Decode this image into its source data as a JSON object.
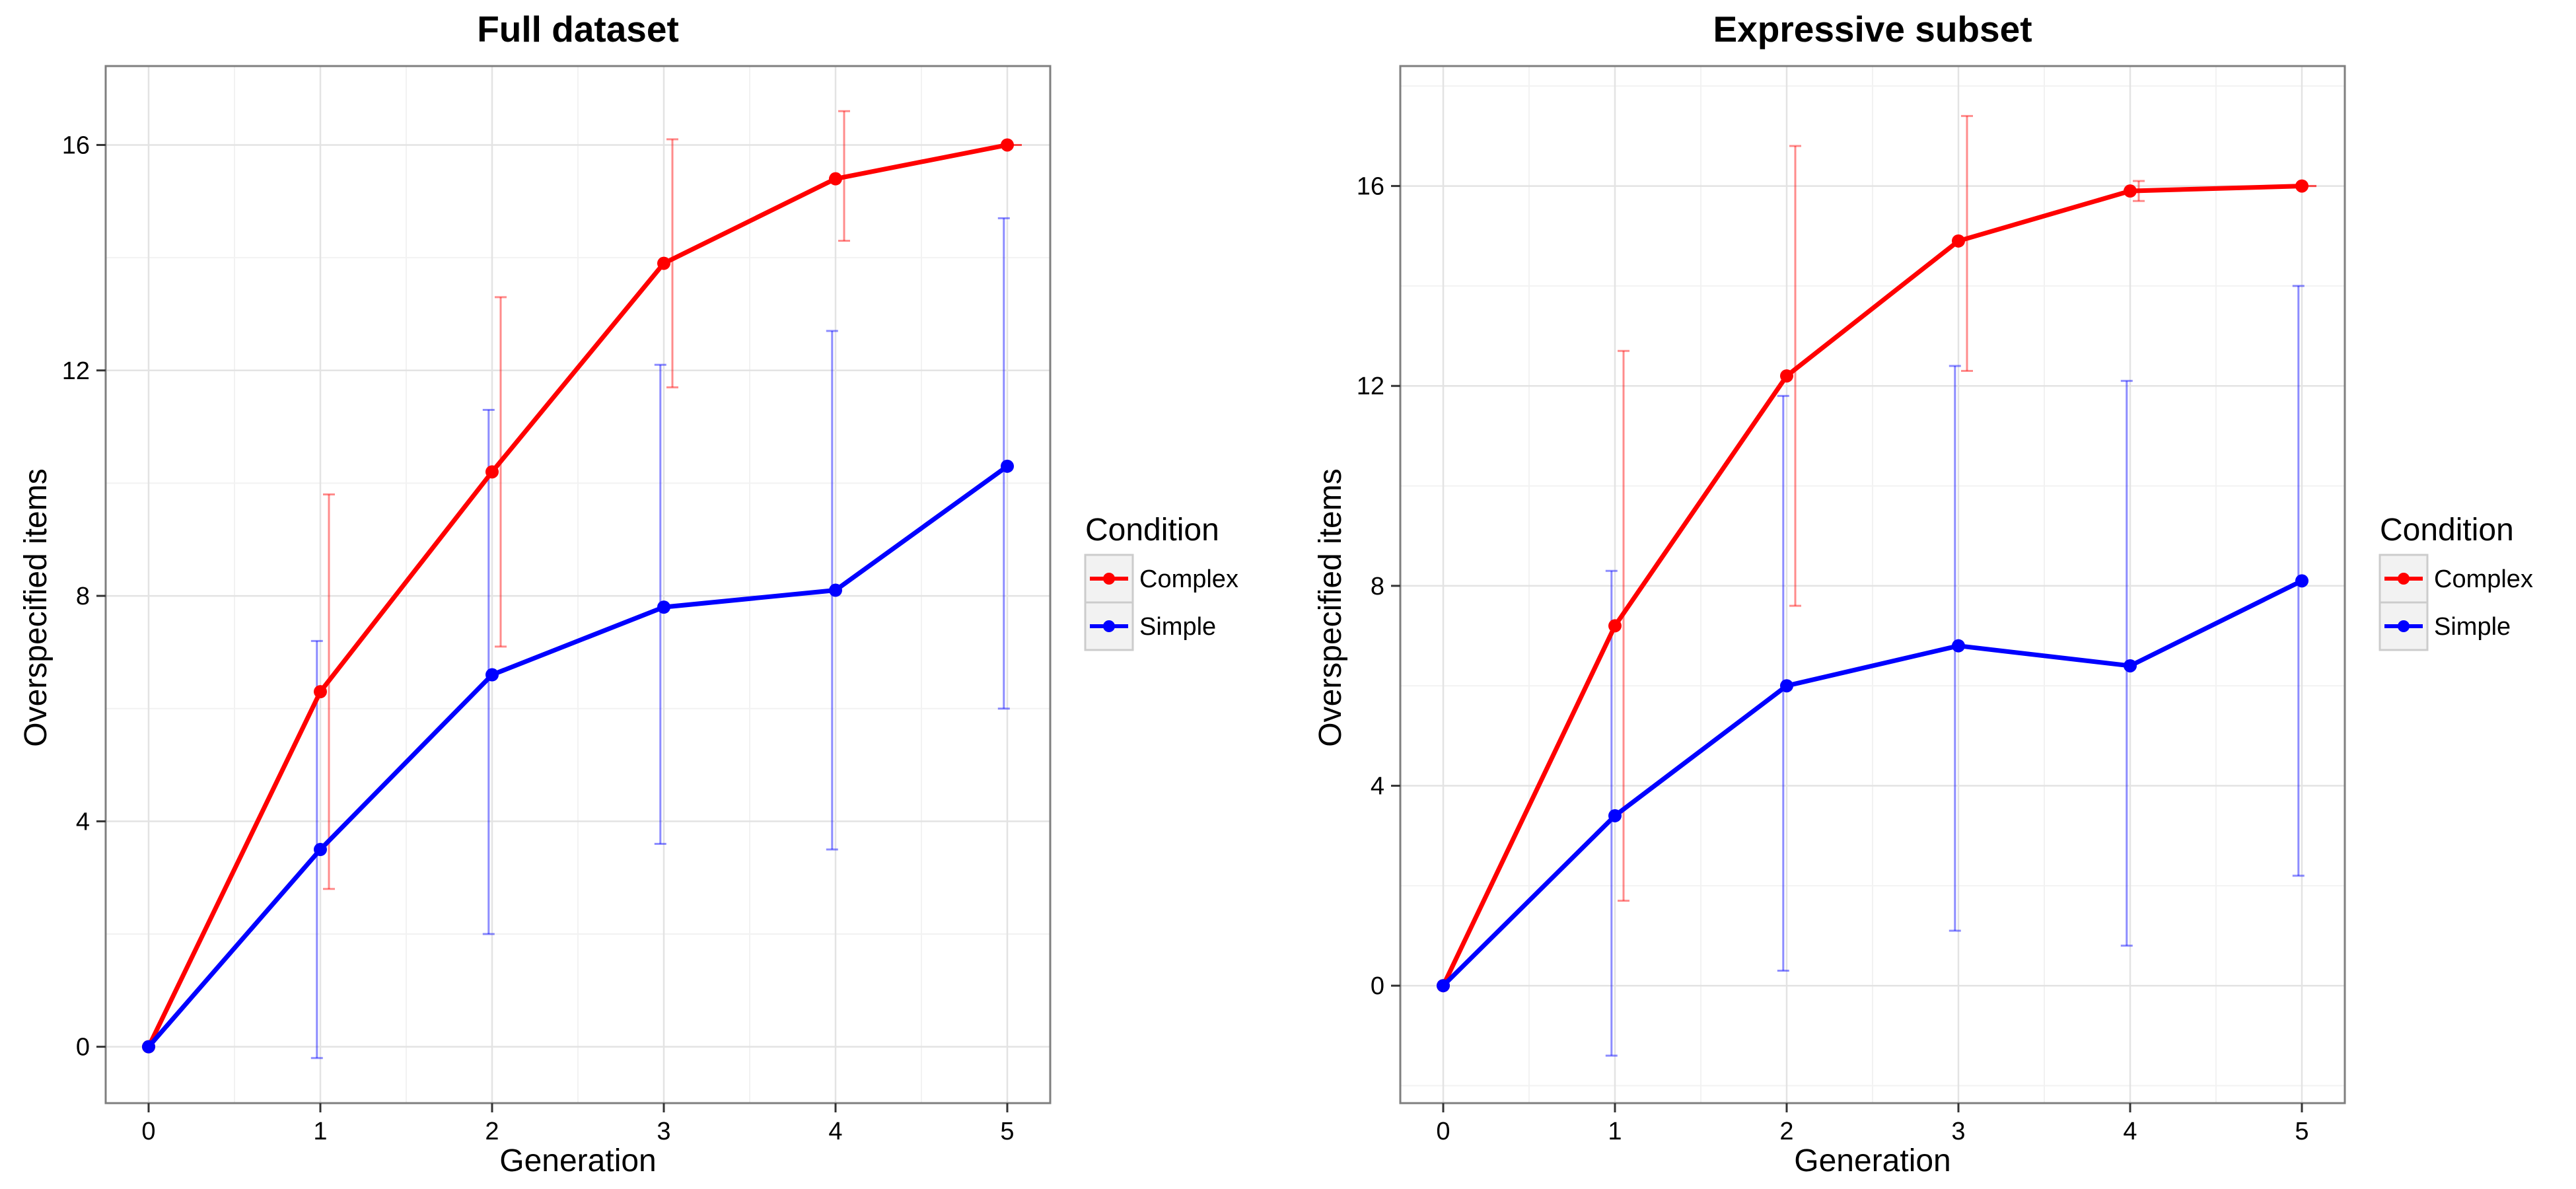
{
  "chart_data": [
    {
      "type": "line",
      "title": "Full dataset",
      "xlabel": "Generation",
      "ylabel": "Overspecified items",
      "x": [
        0,
        1,
        2,
        3,
        4,
        5
      ],
      "xlim": [
        -0.25,
        5.25
      ],
      "ylim": [
        -1,
        17.4
      ],
      "yticks": [
        0,
        4,
        8,
        12,
        16
      ],
      "grid": true,
      "legend": {
        "title": "Condition",
        "position": "right"
      },
      "series": [
        {
          "name": "Complex",
          "color": "#ff0000",
          "values": [
            0,
            6.3,
            10.2,
            13.9,
            15.4,
            16
          ],
          "error_low": [
            0,
            2.8,
            7.1,
            11.7,
            14.3,
            16
          ],
          "error_high": [
            0,
            9.8,
            13.3,
            16.1,
            16.6,
            16
          ]
        },
        {
          "name": "Simple",
          "color": "#0000ff",
          "values": [
            0,
            3.5,
            6.6,
            7.8,
            8.1,
            10.3
          ],
          "error_low": [
            0,
            -0.2,
            2.0,
            3.6,
            3.5,
            6.0
          ],
          "error_high": [
            0,
            7.2,
            11.3,
            12.1,
            12.7,
            14.7
          ]
        }
      ]
    },
    {
      "type": "line",
      "title": "Expressive subset",
      "xlabel": "Generation",
      "ylabel": "Overspecified items",
      "x": [
        0,
        1,
        2,
        3,
        4,
        5
      ],
      "xlim": [
        -0.25,
        5.25
      ],
      "ylim": [
        -2.35,
        18.4
      ],
      "yticks": [
        0,
        4,
        8,
        12,
        16
      ],
      "grid": true,
      "legend": {
        "title": "Condition",
        "position": "right"
      },
      "series": [
        {
          "name": "Complex",
          "color": "#ff0000",
          "values": [
            0,
            7.2,
            12.2,
            14.9,
            15.9,
            16
          ],
          "error_low": [
            0,
            1.7,
            7.6,
            12.3,
            15.7,
            16
          ],
          "error_high": [
            0,
            12.7,
            16.8,
            17.4,
            16.1,
            16
          ]
        },
        {
          "name": "Simple",
          "color": "#0000ff",
          "values": [
            0,
            3.4,
            6.0,
            6.8,
            6.4,
            8.1
          ],
          "error_low": [
            0,
            -1.4,
            0.3,
            1.1,
            0.8,
            2.2
          ],
          "error_high": [
            0,
            8.3,
            11.8,
            12.4,
            12.1,
            14.0
          ]
        }
      ]
    }
  ]
}
